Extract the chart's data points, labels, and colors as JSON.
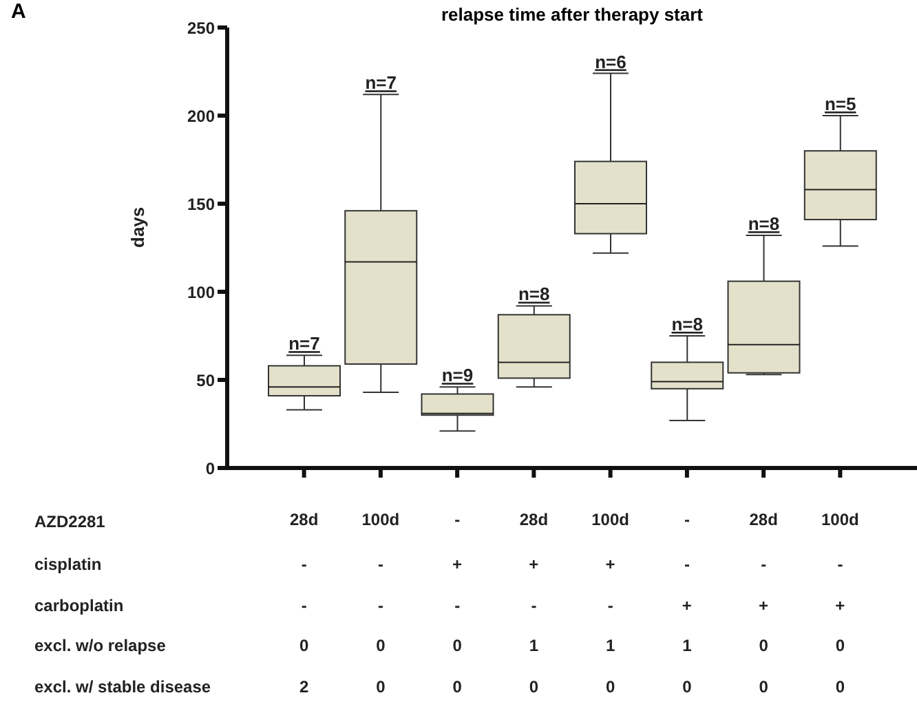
{
  "chart_data": {
    "type": "box",
    "title": "relapse time after therapy start",
    "ylabel": "days",
    "xlabel": "AZD2281",
    "categories": [
      "28d",
      "100d",
      "-",
      "28d",
      "100d",
      "-",
      "28d",
      "100d"
    ],
    "boxes": [
      {
        "low": 33,
        "q1": 41,
        "median": 46,
        "q3": 58,
        "high": 64
      },
      {
        "low": 43,
        "q1": 59,
        "median": 117,
        "q3": 146,
        "high": 212
      },
      {
        "low": 21,
        "q1": 30,
        "median": 31,
        "q3": 42,
        "high": 46
      },
      {
        "low": 46,
        "q1": 51,
        "median": 60,
        "q3": 87,
        "high": 92
      },
      {
        "low": 122,
        "q1": 133,
        "median": 150,
        "q3": 174,
        "high": 224
      },
      {
        "low": 27,
        "q1": 45,
        "median": 49,
        "q3": 60,
        "high": 75
      },
      {
        "low": 53,
        "q1": 54,
        "median": 70,
        "q3": 106,
        "high": 132
      },
      {
        "low": 126,
        "q1": 141,
        "median": 158,
        "q3": 180,
        "high": 200
      }
    ],
    "color": "#e4e1cb",
    "ylim": [
      0,
      250
    ],
    "yticks": [
      0,
      50,
      100,
      150,
      200,
      250
    ],
    "grid": false,
    "legend": false,
    "annotations": [
      "A",
      "n=7",
      "n=7",
      "n=9",
      "n=8",
      "n=6",
      "n=8",
      "n=8",
      "n=5",
      "cisplatin",
      "-",
      "-",
      "+",
      "+",
      "+",
      "-",
      "-",
      "-",
      "carboplatin",
      "-",
      "-",
      "-",
      "-",
      "-",
      "+",
      "+",
      "+",
      "excl. w/o relapse",
      "0",
      "0",
      "0",
      "1",
      "1",
      "1",
      "0",
      "0",
      "excl. w/ stable disease",
      "2",
      "0",
      "0",
      "0",
      "0",
      "0",
      "0",
      "0"
    ]
  }
}
